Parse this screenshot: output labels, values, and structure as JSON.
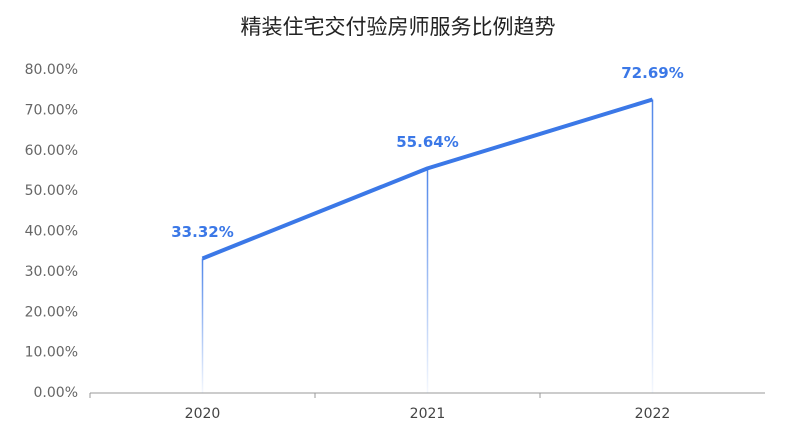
{
  "chart_data": {
    "type": "line",
    "title": "精装住宅交付验房师服务比例趋势",
    "categories": [
      "2020",
      "2021",
      "2022"
    ],
    "values": [
      33.32,
      55.64,
      72.69
    ],
    "value_labels": [
      "33.32%",
      "55.64%",
      "72.69%"
    ],
    "color": "#3b78e7",
    "ylim": [
      0,
      80
    ],
    "yticks": [
      {
        "value": 0,
        "label": "0.00%"
      },
      {
        "value": 10,
        "label": "10.00%"
      },
      {
        "value": 20,
        "label": "20.00%"
      },
      {
        "value": 30,
        "label": "30.00%"
      },
      {
        "value": 40,
        "label": "40.00%"
      },
      {
        "value": 50,
        "label": "50.00%"
      },
      {
        "value": 60,
        "label": "60.00%"
      },
      {
        "value": 70,
        "label": "70.00%"
      },
      {
        "value": 80,
        "label": "80.00%"
      }
    ],
    "grid": false
  }
}
